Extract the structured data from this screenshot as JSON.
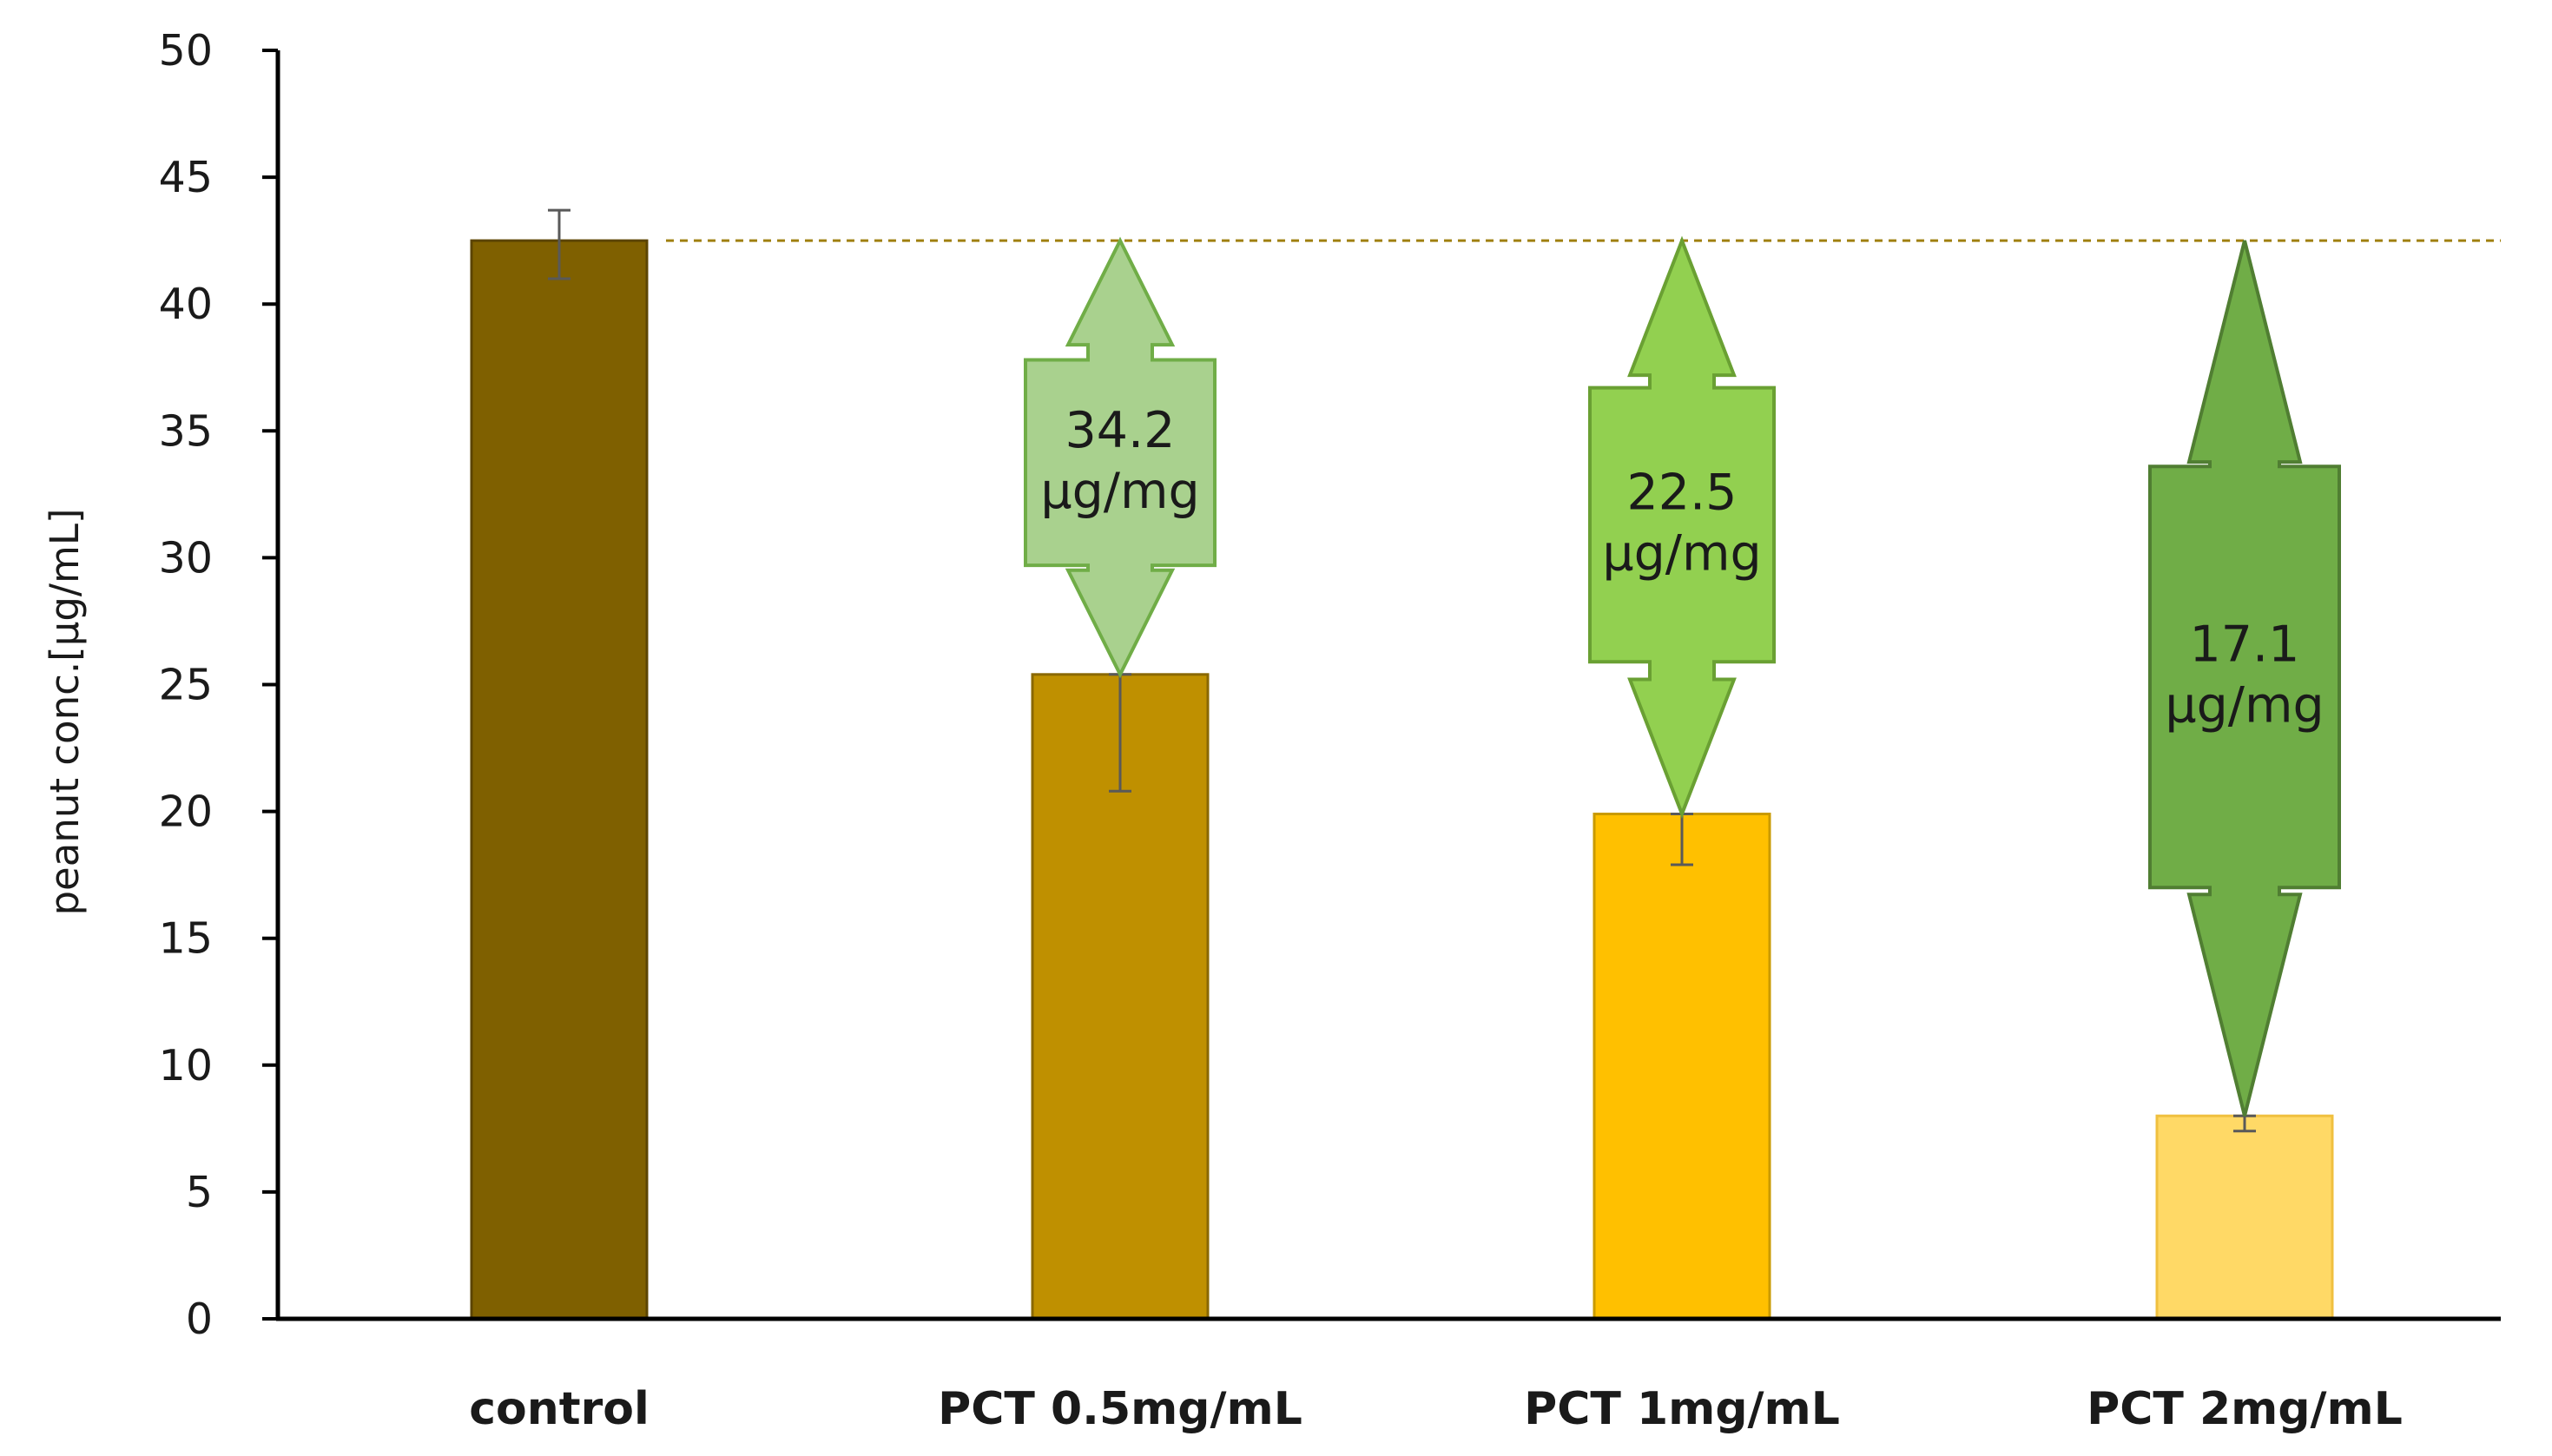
{
  "chart_data": {
    "type": "bar",
    "title": "",
    "xlabel": "",
    "ylabel": "peanut conc.[µg/mL]",
    "ylim": [
      0,
      50
    ],
    "yticks": [
      0,
      5,
      10,
      15,
      20,
      25,
      30,
      35,
      40,
      45,
      50
    ],
    "grid": false,
    "categories": [
      "control",
      "PCT 0.5mg/mL",
      "PCT 1mg/mL",
      "PCT 2mg/mL"
    ],
    "values": [
      42.5,
      25.4,
      19.9,
      8.0
    ],
    "errors": [
      {
        "low": 41.0,
        "high": 43.7
      },
      {
        "low": 20.8,
        "high": 25.4
      },
      {
        "low": 17.9,
        "high": 19.9
      },
      {
        "low": 7.4,
        "high": 8.0
      }
    ],
    "bar_colors": [
      "#7f6000",
      "#bf9000",
      "#ffc000",
      "#ffd966"
    ],
    "bar_edge_colors": [
      "#5c4500",
      "#8a6800",
      "#c99a00",
      "#f0c040"
    ],
    "reference_line": {
      "value": 42.5,
      "style": "dashed",
      "color": "#a08010"
    },
    "annotations": [
      {
        "category": "PCT 0.5mg/mL",
        "value_text": "34.2",
        "unit_text": "µg/mg",
        "from": 42.5,
        "to": 25.4,
        "fill": "#a9d18e",
        "stroke": "#70ad47"
      },
      {
        "category": "PCT 1mg/mL",
        "value_text": "22.5",
        "unit_text": "µg/mg",
        "from": 42.5,
        "to": 19.9,
        "fill": "#92d050",
        "stroke": "#6aa033"
      },
      {
        "category": "PCT 2mg/mL",
        "value_text": "17.1",
        "unit_text": "µg/mg",
        "from": 42.5,
        "to": 8.0,
        "fill": "#70ad47",
        "stroke": "#507e32"
      }
    ]
  }
}
